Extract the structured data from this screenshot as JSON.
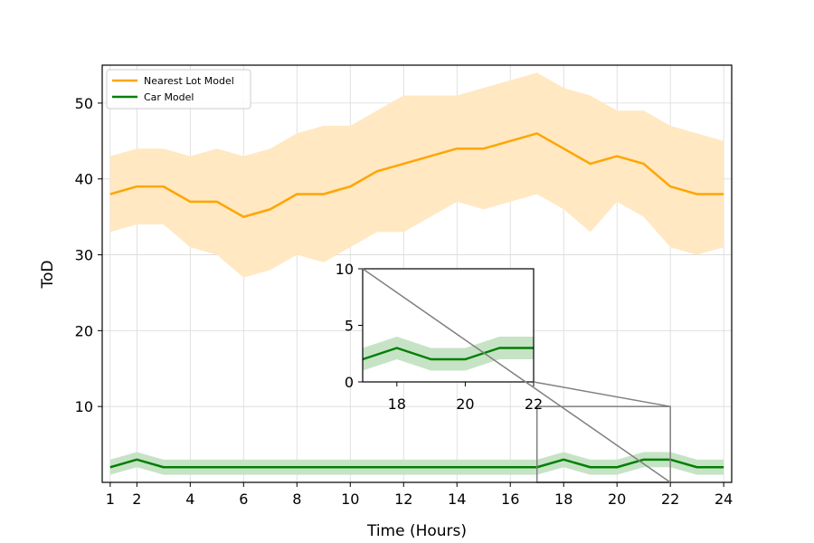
{
  "chart_data": {
    "type": "line",
    "xlabel": "Time (Hours)",
    "ylabel": "ToD",
    "xlim": [
      0.7,
      24.3
    ],
    "ylim": [
      0,
      55
    ],
    "xticks": [
      1,
      2,
      4,
      6,
      8,
      10,
      12,
      14,
      16,
      18,
      20,
      22,
      24
    ],
    "yticks": [
      10,
      20,
      30,
      40,
      50
    ],
    "grid": true,
    "legend": "top-left",
    "x": [
      1,
      2,
      3,
      4,
      5,
      6,
      7,
      8,
      9,
      10,
      11,
      12,
      13,
      14,
      15,
      16,
      17,
      18,
      19,
      20,
      21,
      22,
      23,
      24
    ],
    "series": [
      {
        "name": "Nearest Lot Model",
        "color": "#ffa500",
        "band_color": "#ffe8c2",
        "values": [
          38,
          39,
          39,
          37,
          37,
          35,
          36,
          38,
          38,
          39,
          41,
          42,
          43,
          44,
          44,
          45,
          46,
          44,
          42,
          43,
          42,
          39,
          38,
          38
        ],
        "lower": [
          33,
          34,
          34,
          31,
          30,
          27,
          28,
          30,
          29,
          31,
          33,
          33,
          35,
          37,
          36,
          37,
          38,
          36,
          33,
          37,
          35,
          31,
          30,
          31
        ],
        "upper": [
          43,
          44,
          44,
          43,
          44,
          43,
          44,
          46,
          47,
          47,
          49,
          51,
          51,
          51,
          52,
          53,
          54,
          52,
          51,
          49,
          49,
          47,
          46,
          45
        ]
      },
      {
        "name": "Car Model",
        "color": "#008000",
        "band_color": "#c6e3c6",
        "values": [
          2,
          3,
          2,
          2,
          2,
          2,
          2,
          2,
          2,
          2,
          2,
          2,
          2,
          2,
          2,
          2,
          2,
          3,
          2,
          2,
          3,
          3,
          2,
          2
        ],
        "lower": [
          1,
          2,
          1,
          1,
          1,
          1,
          1,
          1,
          1,
          1,
          1,
          1,
          1,
          1,
          1,
          1,
          1,
          2,
          1,
          1,
          2,
          2,
          1,
          1
        ],
        "upper": [
          3,
          4,
          3,
          3,
          3,
          3,
          3,
          3,
          3,
          3,
          3,
          3,
          3,
          3,
          3,
          3,
          3,
          4,
          3,
          3,
          4,
          4,
          3,
          3
        ]
      }
    ],
    "inset": {
      "series": "Car Model",
      "xlim": [
        17,
        22
      ],
      "ylim": [
        0,
        10
      ],
      "xticks": [
        18,
        20,
        22
      ],
      "yticks": [
        0,
        5,
        10
      ]
    }
  }
}
